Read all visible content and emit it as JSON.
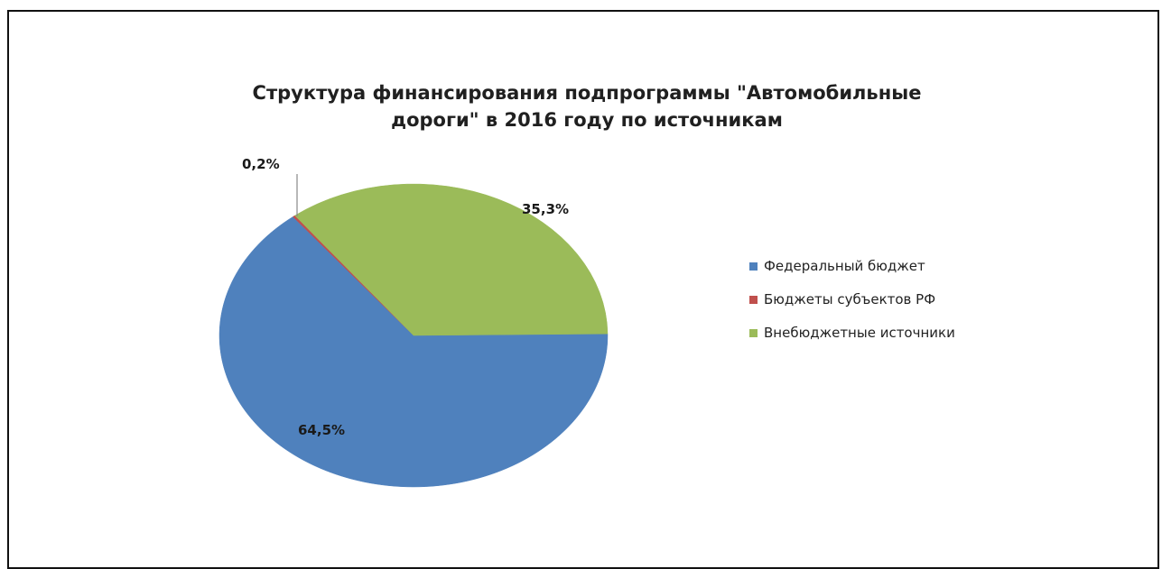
{
  "chart_data": {
    "type": "pie",
    "title_line1": "Структура финансирования подпрограммы  \"Автомобильные",
    "title_line2": "дороги\" в 2016 году по источникам",
    "legend_position": "right",
    "slices": [
      {
        "name": "Федеральный бюджет",
        "value": 64.5,
        "label": "64,5%",
        "color": "#4f81bd"
      },
      {
        "name": "Бюджеты субъектов РФ",
        "value": 0.2,
        "label": "0,2%",
        "color": "#c0504d"
      },
      {
        "name": "Внебюджетные источники",
        "value": 35.3,
        "label": "35,3%",
        "color": "#9bbb59"
      }
    ]
  }
}
